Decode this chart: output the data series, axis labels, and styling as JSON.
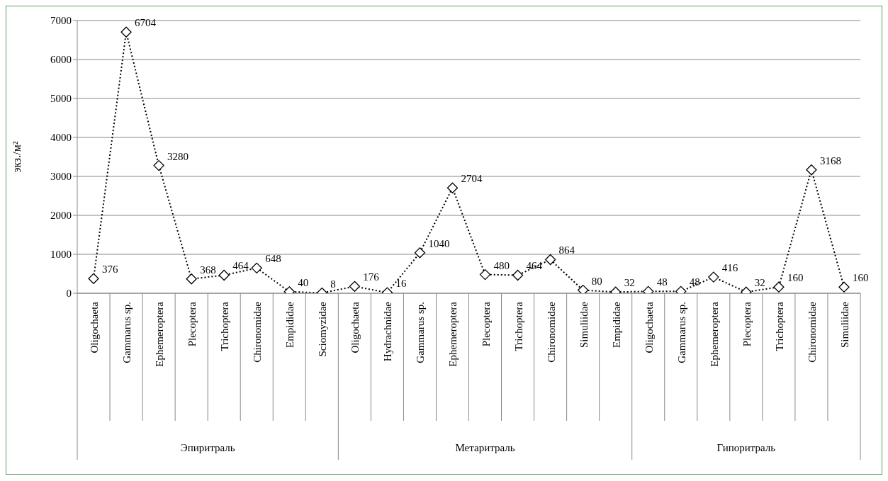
{
  "chart_data": {
    "type": "line",
    "ylabel": "экз./м²",
    "categories": [
      "Oligochaeta",
      "Gammarus sp.",
      "Ephemeroptera",
      "Plecoptera",
      "Trichoptera",
      "Chironomidae",
      "Empididae",
      "Sciomyzidae",
      "Oligochaeta",
      "Hydrachnidae",
      "Gammarus sp.",
      "Ephemeroptera",
      "Plecoptera",
      "Trichoptera",
      "Chironomidae",
      "Simuliidae",
      "Empididae",
      "Oligochaeta",
      "Gammarus sp.",
      "Ephemeroptera",
      "Plecoptera",
      "Trichoptera",
      "Chironomidae",
      "Simuliidae"
    ],
    "series": [
      {
        "color": "#000000",
        "values": [
          376,
          6704,
          3280,
          368,
          464,
          648,
          40,
          8,
          176,
          16,
          1040,
          2704,
          480,
          464,
          864,
          80,
          32,
          48,
          48,
          416,
          32,
          160,
          3168,
          160
        ]
      }
    ],
    "annotations": [
      "Эпиритраль",
      "Метаритраль",
      "Гипоритраль"
    ],
    "ylim": [
      0,
      7000
    ],
    "yticks": [
      0,
      1000,
      2000,
      3000,
      4000,
      5000,
      6000,
      7000
    ],
    "grid": "y",
    "legend": false,
    "marker": "diamond",
    "line_style": "dotted",
    "data_labels": true
  }
}
